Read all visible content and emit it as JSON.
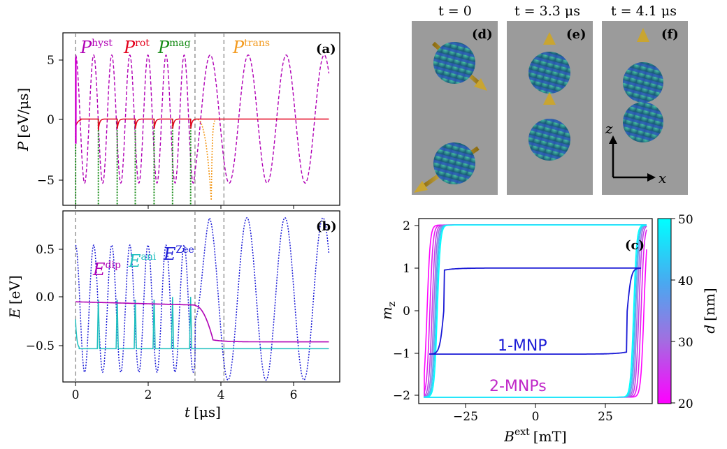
{
  "panels": {
    "a": {
      "label": "(a)",
      "ylabel_sym": "P",
      "ylabel_unit": "[eV/μs]",
      "yticks": [
        "5",
        "0",
        "−5"
      ],
      "series_labels": [
        {
          "base": "P",
          "sup": "hyst",
          "color": "#b000b5"
        },
        {
          "base": "P",
          "sup": "rot",
          "color": "#e3001b"
        },
        {
          "base": "P",
          "sup": "mag",
          "color": "#138a13"
        },
        {
          "base": "P",
          "sup": "trans",
          "color": "#f39a1e"
        }
      ]
    },
    "b": {
      "label": "(b)",
      "ylabel_sym": "E",
      "ylabel_unit": "[eV]",
      "yticks": [
        "0.5",
        "0.0",
        "−0.5"
      ],
      "xticks": [
        "0",
        "2",
        "4",
        "6"
      ],
      "xlabel_sym": "t",
      "xlabel_unit": "[μs]",
      "series_labels": [
        {
          "base": "E",
          "sup": "dip",
          "color": "#b000b5"
        },
        {
          "base": "E",
          "sup": "ani",
          "color": "#1fbfbf"
        },
        {
          "base": "E",
          "sup": "Zee",
          "color": "#1a1ad6"
        }
      ]
    },
    "c": {
      "label": "(c)",
      "ylabel": "m",
      "ylabel_sub": "z",
      "xlabel_base": "B",
      "xlabel_sup": "ext",
      "xlabel_unit": "[mT]",
      "xticks": [
        "−25",
        "0",
        "25"
      ],
      "yticks": [
        "2",
        "1",
        "0",
        "−1",
        "−2"
      ],
      "curve_label_single": "1-MNP",
      "curve_label_pair": "2-MNPs",
      "colorbar": {
        "label_sym": "d",
        "label_unit": "[nm]",
        "ticks": [
          "50",
          "40",
          "30",
          "20"
        ],
        "color_top": "#00ffff",
        "color_bottom": "#ff00ff"
      }
    },
    "snapshots": [
      {
        "label": "(d)",
        "time": "t = 0"
      },
      {
        "label": "(e)",
        "time": "t = 3.3 μs"
      },
      {
        "label": "(f)",
        "time": "t = 4.1 μs"
      }
    ],
    "axes_hint": {
      "z": "z",
      "x": "x"
    }
  },
  "chart_data": [
    {
      "type": "line",
      "panel": "a",
      "xlabel": "t [μs]",
      "ylabel": "P [eV/μs]",
      "xlim": [
        -0.35,
        7.3
      ],
      "ylim": [
        -7,
        7
      ],
      "vlines": [
        0,
        3.3,
        4.1
      ],
      "series": [
        {
          "name": "P^hyst",
          "style": "dashed",
          "amplitude": 5.2,
          "period_early": 0.5,
          "period_late": 1.05
        },
        {
          "name": "P^rot",
          "style": "solid",
          "baseline": 0,
          "spike_times": [
            0.63,
            1.15,
            1.65,
            2.17,
            2.68,
            3.18
          ],
          "spike_min": -0.9
        },
        {
          "name": "P^mag",
          "style": "dotted",
          "spike_times": [
            0.0,
            0.63,
            1.15,
            1.65,
            2.17,
            2.68,
            3.18
          ],
          "spike_min": -7
        },
        {
          "name": "P^trans",
          "style": "dotted",
          "spike_time": 3.75,
          "spike_min": -6.6
        }
      ]
    },
    {
      "type": "line",
      "panel": "b",
      "xlabel": "t [μs]",
      "ylabel": "E [eV]",
      "xlim": [
        -0.35,
        7.3
      ],
      "ylim": [
        -0.85,
        0.9
      ],
      "vlines": [
        0,
        3.3,
        4.1
      ],
      "series": [
        {
          "name": "E^dip",
          "style": "solid",
          "before": -0.03,
          "after": -0.44,
          "drop_time": 3.8
        },
        {
          "name": "E^ani",
          "style": "solid",
          "baseline": -0.51,
          "spike_times": [
            0.63,
            1.15,
            1.65,
            2.17,
            2.68,
            3.18
          ],
          "spike_max": 0.02
        },
        {
          "name": "E^Zee",
          "style": "dotted",
          "amplitude_early": 0.65,
          "offset_early": -0.1,
          "amplitude_late": 0.83,
          "period_early": 0.5,
          "period_late": 1.05
        }
      ]
    },
    {
      "type": "line",
      "panel": "c",
      "xlabel": "B^ext [mT]",
      "ylabel": "m_z",
      "xlim": [
        -42,
        42
      ],
      "ylim": [
        -2.15,
        2.15
      ],
      "series": [
        {
          "name": "1-MNP",
          "coercive_field": 33,
          "saturation": 1
        },
        {
          "name": "2-MNPs",
          "saturation": 2,
          "diameters_nm": [
            20,
            25,
            30,
            35,
            40,
            45,
            50
          ],
          "coercive_fields": [
            39,
            38,
            37.2,
            36.6,
            36.1,
            35.7,
            35.3
          ]
        }
      ],
      "colorbar_range": [
        20,
        50
      ]
    }
  ]
}
